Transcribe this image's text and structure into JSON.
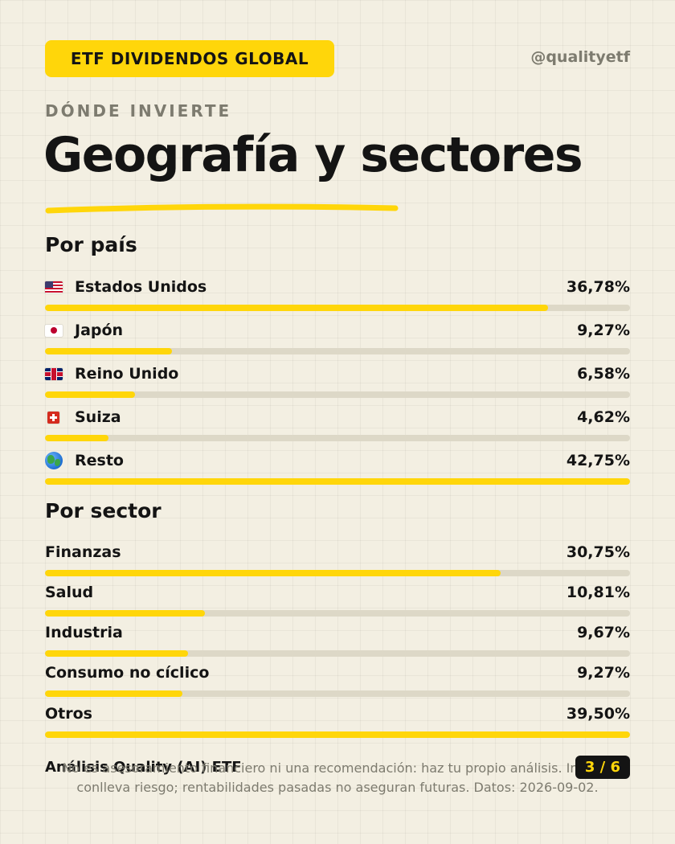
{
  "header": {
    "badge": "ETF DIVIDENDOS GLOBAL",
    "handle": "@qualityetf"
  },
  "kicker": "DÓNDE INVIERTE",
  "title": "Geografía y sectores",
  "colors": {
    "accent": "#ffd60a",
    "track": "#ddd8c7",
    "muted": "#7d7b6f",
    "ink": "#141414"
  },
  "countries": {
    "heading": "Por país",
    "items": [
      {
        "label": "Estados Unidos",
        "value": "36,78%",
        "percent": 36.78,
        "icon": "us-flag-icon"
      },
      {
        "label": "Japón",
        "value": "9,27%",
        "percent": 9.27,
        "icon": "jp-flag-icon"
      },
      {
        "label": "Reino Unido",
        "value": "6,58%",
        "percent": 6.58,
        "icon": "gb-flag-icon"
      },
      {
        "label": "Suiza",
        "value": "4,62%",
        "percent": 4.62,
        "icon": "ch-flag-icon"
      },
      {
        "label": "Resto",
        "value": "42,75%",
        "percent": 42.75,
        "icon": "globe-icon"
      }
    ]
  },
  "sectors": {
    "heading": "Por sector",
    "items": [
      {
        "label": "Finanzas",
        "value": "30,75%",
        "percent": 30.75
      },
      {
        "label": "Salud",
        "value": "10,81%",
        "percent": 10.81
      },
      {
        "label": "Industria",
        "value": "9,67%",
        "percent": 9.67
      },
      {
        "label": "Consumo no cíclico",
        "value": "9,27%",
        "percent": 9.27
      },
      {
        "label": "Otros",
        "value": "39,50%",
        "percent": 39.5
      }
    ]
  },
  "footer": {
    "brand": "Análisis Quality (AI) ETF",
    "disclaimer": "No es asesoramiento financiero ni una recomendación: haz tu propio análisis. Invertir conlleva riesgo; rentabilidades pasadas no aseguran futuras. Datos: 2026-09-02.",
    "page": "3 / 6"
  }
}
